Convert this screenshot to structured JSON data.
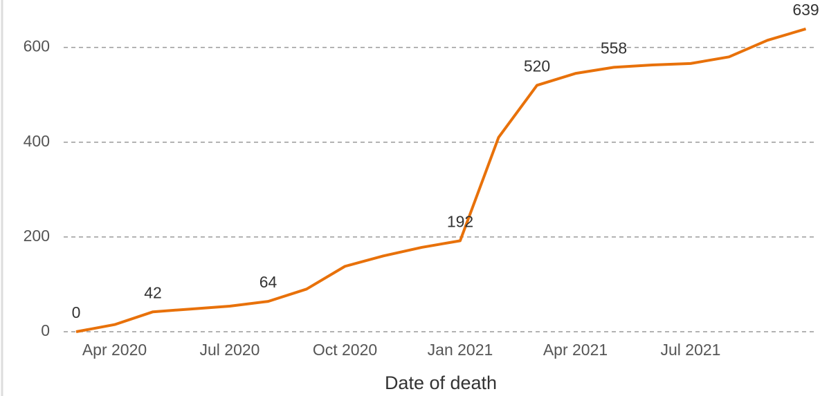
{
  "chart_data": {
    "type": "line",
    "x_label": "Date of death",
    "x": [
      "2020-03",
      "2020-04",
      "2020-05",
      "2020-06",
      "2020-07",
      "2020-08",
      "2020-09",
      "2020-10",
      "2020-11",
      "2020-12",
      "2021-01",
      "2021-02",
      "2021-03",
      "2021-04",
      "2021-05",
      "2021-06",
      "2021-07",
      "2021-08",
      "2021-09",
      "2021-10"
    ],
    "xticks": [
      {
        "value": "2020-04",
        "label": "Apr 2020"
      },
      {
        "value": "2020-07",
        "label": "Jul 2020"
      },
      {
        "value": "2020-10",
        "label": "Oct 2020"
      },
      {
        "value": "2021-01",
        "label": "Jan 2021"
      },
      {
        "value": "2021-04",
        "label": "Apr 2021"
      },
      {
        "value": "2021-07",
        "label": "Jul 2021"
      }
    ],
    "series": [
      {
        "color": "#e8710a",
        "values": [
          0,
          15,
          42,
          48,
          54,
          64,
          90,
          138,
          160,
          178,
          192,
          410,
          520,
          545,
          558,
          563,
          566,
          580,
          615,
          639
        ],
        "value_labels": [
          "0",
          null,
          "42",
          null,
          null,
          "64",
          null,
          null,
          null,
          null,
          "192",
          null,
          "520",
          null,
          "558",
          null,
          null,
          null,
          null,
          "639"
        ]
      }
    ],
    "ylim": [
      0,
      700
    ],
    "yticks": [
      0,
      200,
      400,
      600
    ],
    "grid": true
  }
}
